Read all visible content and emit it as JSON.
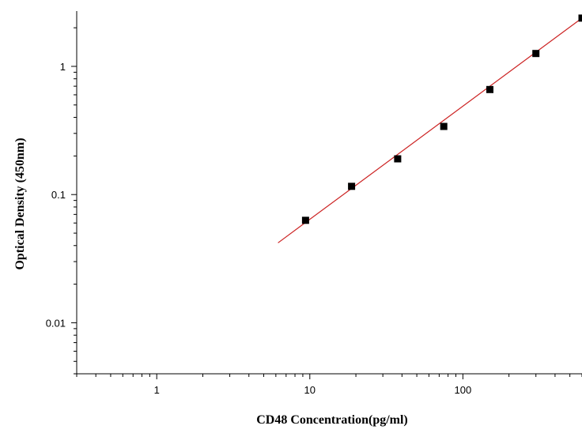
{
  "chart_data": {
    "type": "scatter",
    "title": "",
    "xlabel": "CD48 Concentration(pg/ml)",
    "ylabel": "Optical Density (450nm)",
    "x_scale": "log",
    "y_scale": "log",
    "xlim": [
      0.3,
      600
    ],
    "ylim": [
      0.004,
      2.7
    ],
    "x_ticks": [
      {
        "value": 1,
        "label": "1"
      },
      {
        "value": 10,
        "label": "10"
      },
      {
        "value": 100,
        "label": "100"
      }
    ],
    "y_ticks": [
      {
        "value": 0.01,
        "label": "0.01"
      },
      {
        "value": 0.1,
        "label": "0.1"
      },
      {
        "value": 1,
        "label": "1"
      }
    ],
    "grid": false,
    "legend": "none",
    "series": [
      {
        "type": "scatter",
        "x": [
          9.375,
          18.75,
          37.5,
          75,
          150,
          300,
          600
        ],
        "y": [
          0.063,
          0.116,
          0.19,
          0.34,
          0.66,
          1.26,
          2.38
        ],
        "color": "#000000",
        "marker": "square"
      },
      {
        "type": "line",
        "x": [
          6.2,
          600
        ],
        "y": [
          0.042,
          2.38
        ],
        "color": "#cc2222"
      }
    ]
  }
}
